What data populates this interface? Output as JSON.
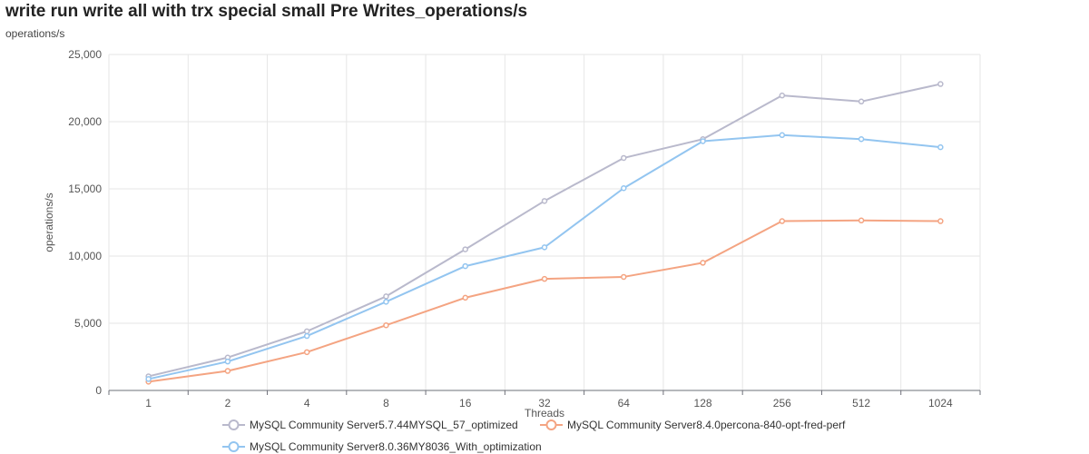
{
  "chart_data": {
    "type": "line",
    "title": "write run write all with trx special small Pre Writes_operations/s",
    "subtitle": "operations/s",
    "xlabel": "Threads",
    "ylabel": "operations/s",
    "categories": [
      "1",
      "2",
      "4",
      "8",
      "16",
      "32",
      "64",
      "128",
      "256",
      "512",
      "1024"
    ],
    "ylim": [
      0,
      25000
    ],
    "yticks": [
      0,
      5000,
      10000,
      15000,
      20000,
      25000
    ],
    "ytick_labels": [
      "0",
      "5,000",
      "10,000",
      "15,000",
      "20,000",
      "25,000"
    ],
    "grid": true,
    "legend_position": "bottom",
    "series": [
      {
        "name": "MySQL Community Server5.7.44MYSQL_57_optimized",
        "color": "#b9b9cc",
        "values": [
          1050,
          2450,
          4400,
          7000,
          10500,
          14100,
          17300,
          18700,
          21950,
          21500,
          22800
        ]
      },
      {
        "name": "MySQL Community Server8.4.0percona-840-opt-fred-perf",
        "color": "#f4a482",
        "values": [
          650,
          1450,
          2850,
          4850,
          6900,
          8300,
          8450,
          9500,
          12600,
          12650,
          12600
        ]
      },
      {
        "name": "MySQL Community Server8.0.36MY8036_With_optimization",
        "color": "#93c5f0",
        "values": [
          850,
          2150,
          4050,
          6600,
          9250,
          10650,
          15050,
          18550,
          19000,
          18700,
          18100
        ]
      }
    ]
  }
}
